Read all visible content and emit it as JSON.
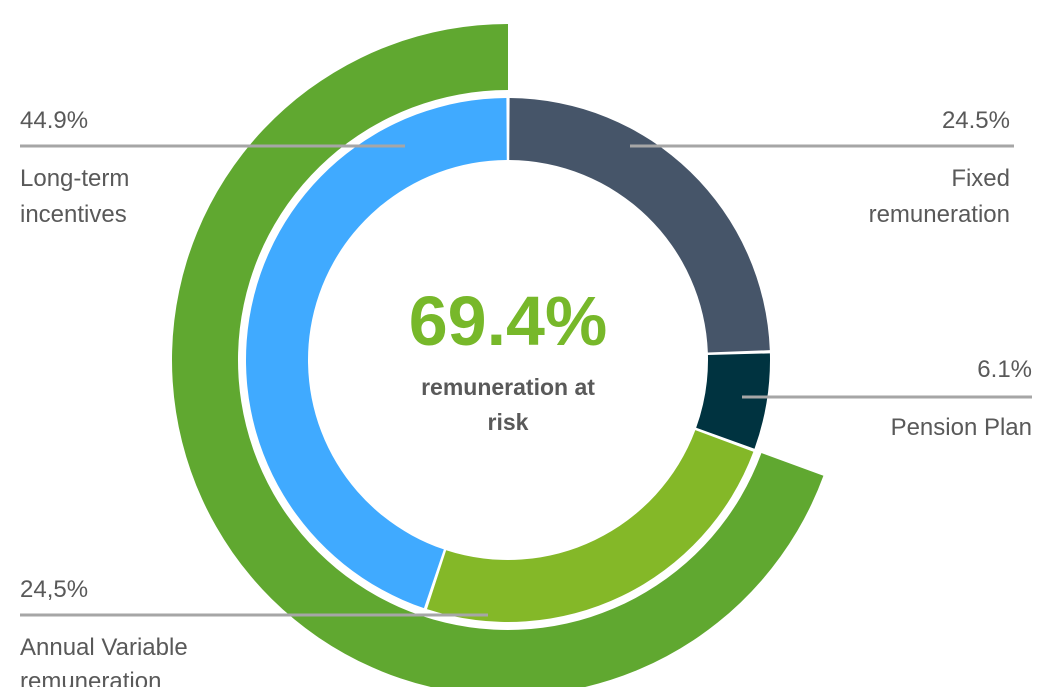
{
  "chart_data": {
    "type": "pie",
    "center_value": "69.4%",
    "center_label_line1": "remuneration at",
    "center_label_line2": "risk",
    "slices": [
      {
        "percent_label": "24.5%",
        "label_line1": "Fixed",
        "label_line2": "remuneration",
        "value": 24.5,
        "color": "#465569"
      },
      {
        "percent_label": "6.1%",
        "label_line1": "Pension Plan",
        "label_line2": "",
        "value": 6.1,
        "color": "#003340"
      },
      {
        "percent_label": "24,5%",
        "label_line1": "Annual Variable",
        "label_line2": "remuneration",
        "value": 24.5,
        "color": "#84b828"
      },
      {
        "percent_label": "44.9%",
        "label_line1": "Long-term",
        "label_line2": "incentives",
        "value": 44.9,
        "color": "#40aaff"
      }
    ],
    "outer_ring": {
      "value": 69.4,
      "color": "#60a830"
    },
    "colors": {
      "center_value": "#77b82a",
      "label_text": "#595959",
      "leader_line": "#a6a6a6"
    }
  }
}
